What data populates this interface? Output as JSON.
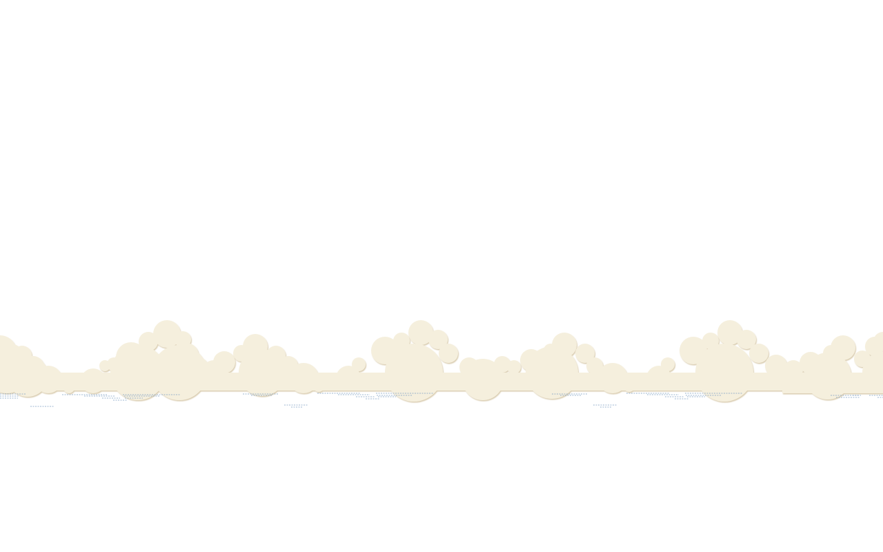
{
  "scene": {
    "background_color": "#ffffff",
    "cloud_color": "#f5efdd",
    "cloud_shadow_color": "#d9c9a8",
    "ground_tick_color": "#7fa0c4"
  }
}
